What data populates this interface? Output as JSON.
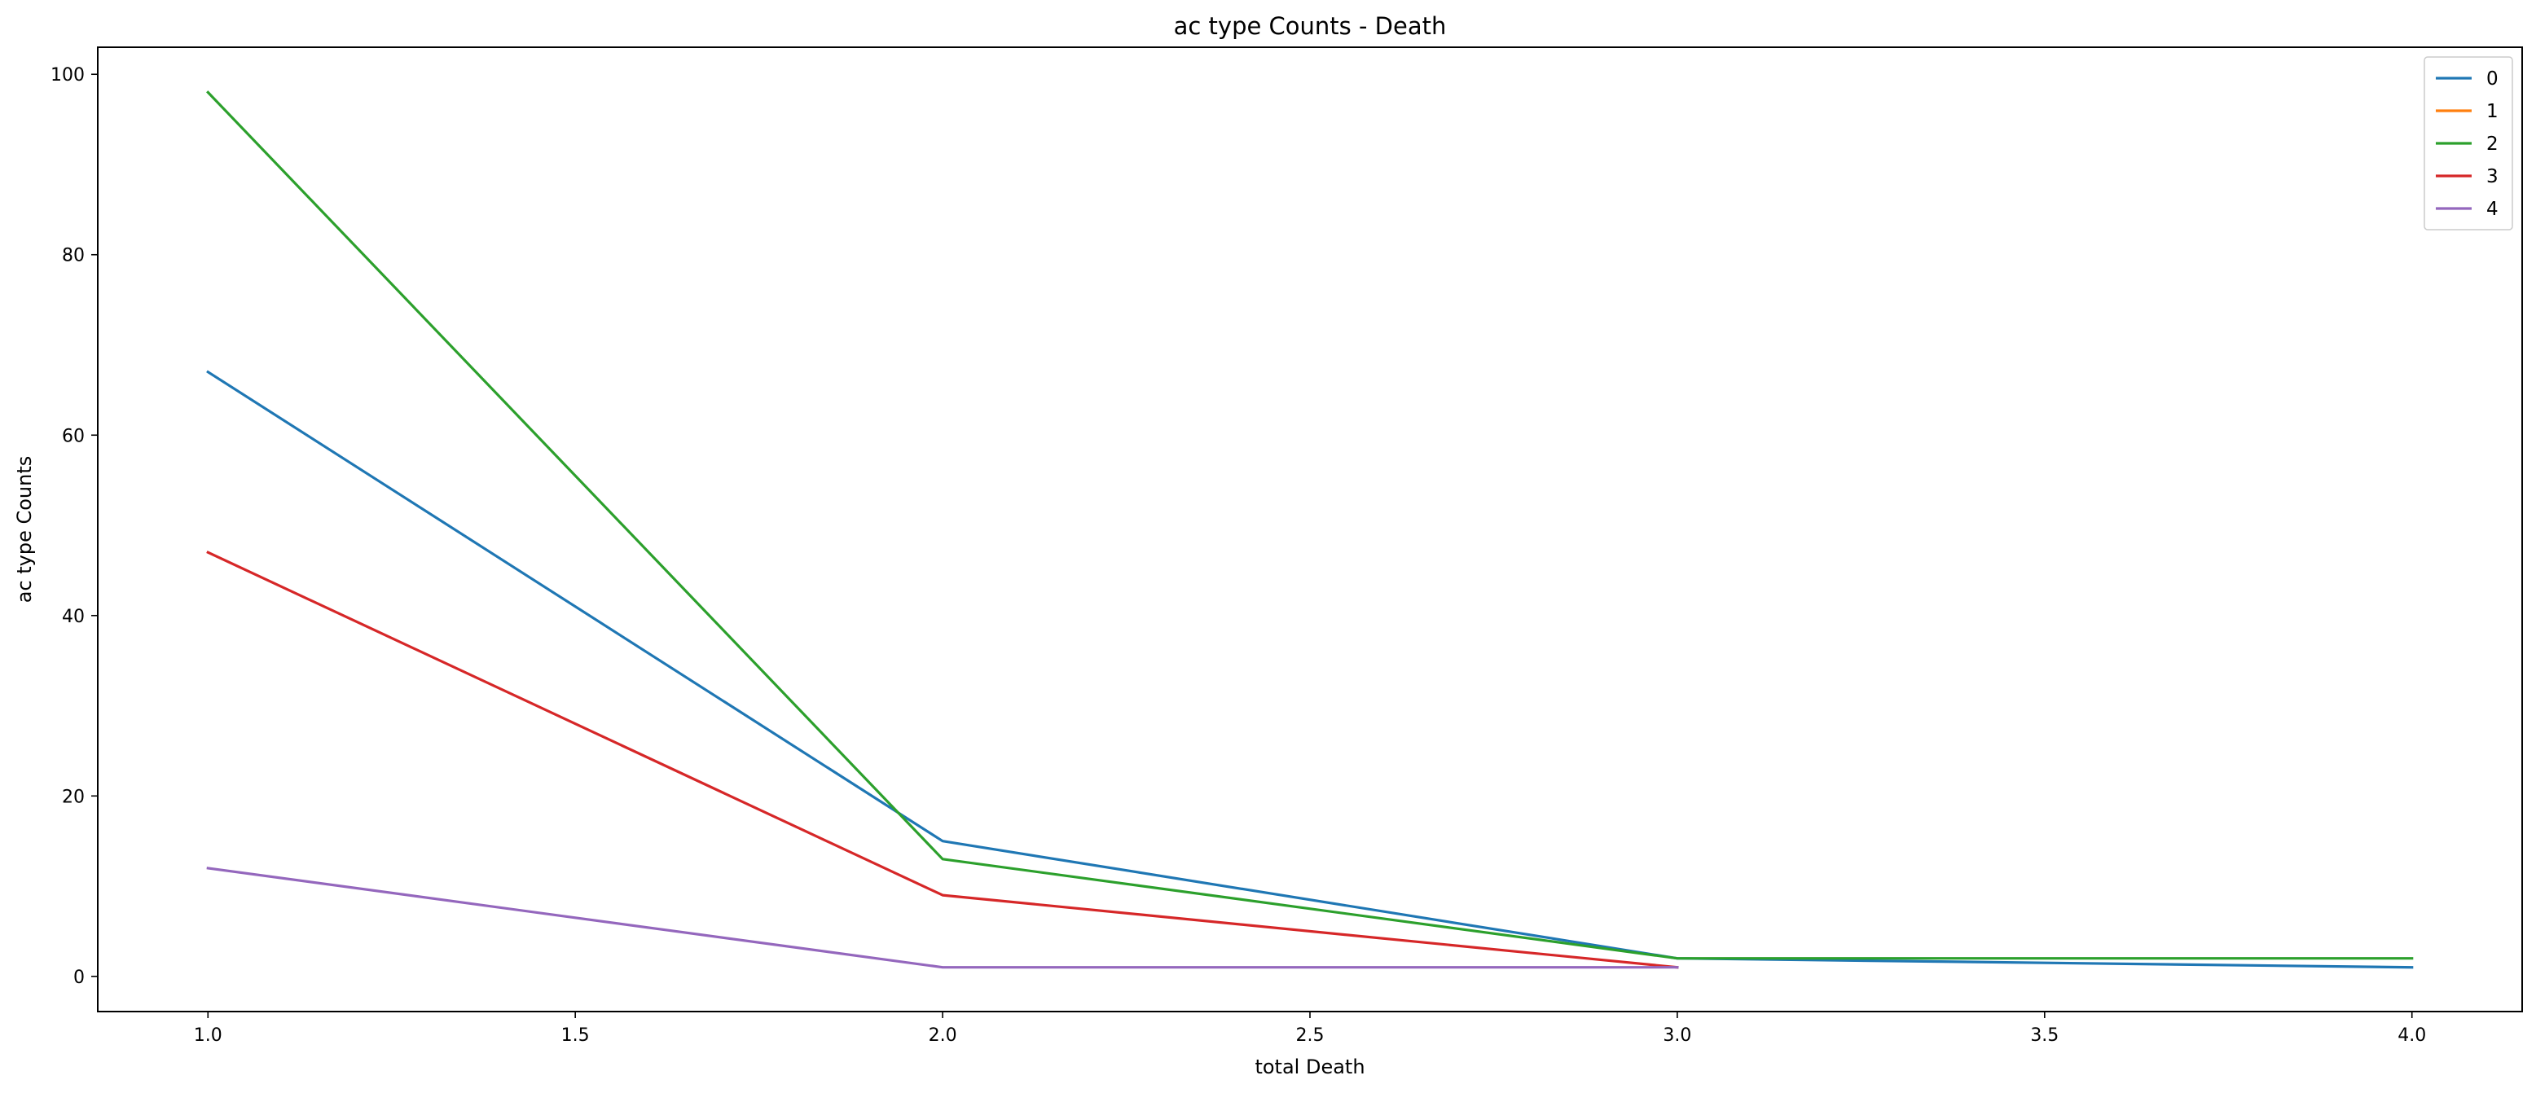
{
  "chart_data": {
    "type": "line",
    "title": "ac type Counts - Death",
    "xlabel": "total Death",
    "ylabel": "ac type Counts",
    "xlim": [
      0.85,
      4.15
    ],
    "ylim": [
      -3.9,
      103.0
    ],
    "xticks": [
      1.0,
      1.5,
      2.0,
      2.5,
      3.0,
      3.5,
      4.0
    ],
    "xtick_labels": [
      "1.0",
      "1.5",
      "2.0",
      "2.5",
      "3.0",
      "3.5",
      "4.0"
    ],
    "yticks": [
      0,
      20,
      40,
      60,
      80,
      100
    ],
    "ytick_labels": [
      "0",
      "20",
      "40",
      "60",
      "80",
      "100"
    ],
    "grid": false,
    "legend_position": "top-right",
    "series": [
      {
        "name": "0",
        "color": "#1f77b4",
        "x": [
          1,
          2,
          3,
          4
        ],
        "values": [
          67,
          15,
          2,
          1
        ]
      },
      {
        "name": "1",
        "color": "#ff7f0e",
        "x": [],
        "values": []
      },
      {
        "name": "2",
        "color": "#2ca02c",
        "x": [
          1,
          2,
          3,
          4
        ],
        "values": [
          98,
          13,
          2,
          2
        ]
      },
      {
        "name": "3",
        "color": "#d62728",
        "x": [
          1,
          2,
          3
        ],
        "values": [
          47,
          9,
          1
        ]
      },
      {
        "name": "4",
        "color": "#9467bd",
        "x": [
          1,
          2,
          3
        ],
        "values": [
          12,
          1,
          1
        ]
      }
    ]
  }
}
